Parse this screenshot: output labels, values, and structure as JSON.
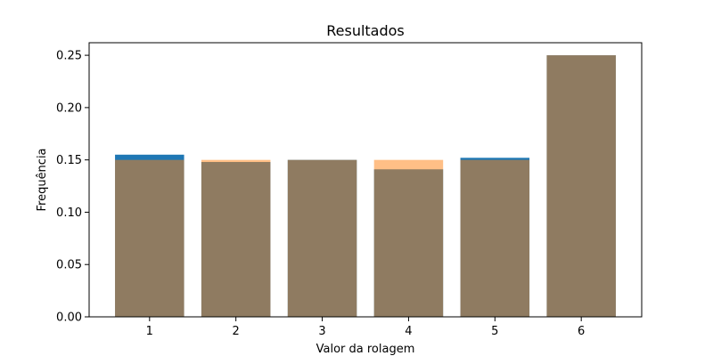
{
  "chart_data": {
    "type": "bar",
    "title": "Resultados",
    "xlabel": "Valor da rolagem",
    "ylabel": "Frequência",
    "categories": [
      "1",
      "2",
      "3",
      "4",
      "5",
      "6"
    ],
    "series": [
      {
        "color": "#1f77b4",
        "opacity": 1.0,
        "values": [
          0.155,
          0.148,
          0.15,
          0.141,
          0.152,
          0.25
        ]
      },
      {
        "color": "#ff7f0e",
        "opacity": 0.5,
        "values": [
          0.15,
          0.15,
          0.15,
          0.15,
          0.15,
          0.25
        ]
      }
    ],
    "ylim": [
      0,
      0.262
    ],
    "yticks": [
      0.0,
      0.05,
      0.1,
      0.15,
      0.2,
      0.25
    ],
    "ytick_labels": [
      "0.00",
      "0.05",
      "0.10",
      "0.15",
      "0.20",
      "0.25"
    ],
    "grid": false,
    "legend": "none"
  }
}
